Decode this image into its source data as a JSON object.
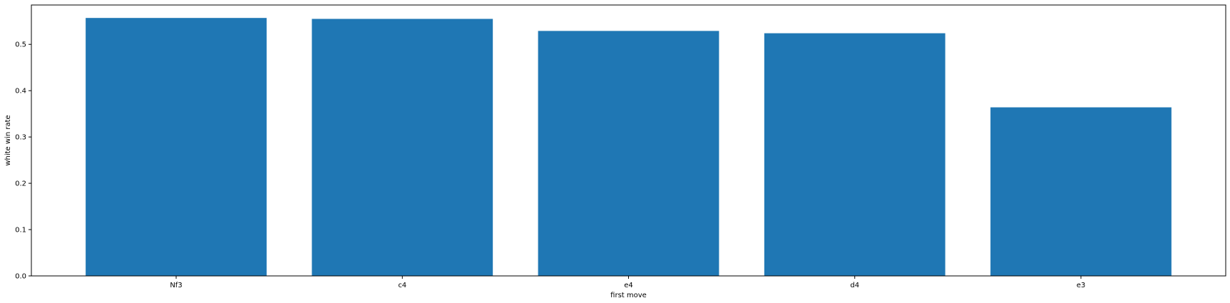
{
  "chart_data": {
    "type": "bar",
    "categories": [
      "Nf3",
      "c4",
      "e4",
      "d4",
      "e3"
    ],
    "values": [
      0.557,
      0.555,
      0.529,
      0.524,
      0.364
    ],
    "title": "",
    "xlabel": "first move",
    "ylabel": "white win rate",
    "ylim": [
      0,
      0.585
    ],
    "yticks": [
      {
        "value": 0.0,
        "label": "0.0"
      },
      {
        "value": 0.1,
        "label": "0.1"
      },
      {
        "value": 0.2,
        "label": "0.2"
      },
      {
        "value": 0.3,
        "label": "0.3"
      },
      {
        "value": 0.4,
        "label": "0.4"
      },
      {
        "value": 0.5,
        "label": "0.5"
      }
    ],
    "bar_color": "#1f77b4",
    "grid": false,
    "legend": "none"
  }
}
